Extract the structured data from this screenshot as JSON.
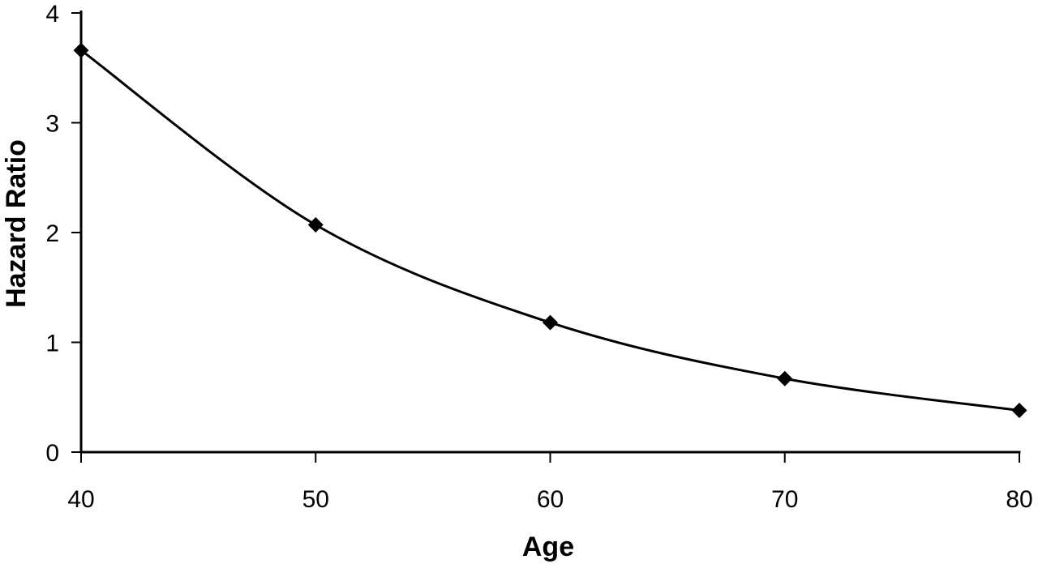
{
  "figure": {
    "background": "#ffffff",
    "ink_color": "#000000"
  },
  "chart_data": {
    "type": "line",
    "title": "",
    "xlabel": "Age",
    "ylabel": "Hazard Ratio",
    "x": [
      40,
      50,
      60,
      70,
      80
    ],
    "series": [
      {
        "name": "Hazard Ratio",
        "values": [
          3.66,
          2.07,
          1.18,
          0.67,
          0.38
        ]
      }
    ],
    "xticks": [
      40,
      50,
      60,
      70,
      80
    ],
    "yticks": [
      0,
      1,
      2,
      3,
      4
    ],
    "xlim": [
      40,
      80
    ],
    "ylim": [
      0,
      4
    ],
    "marker": "diamond",
    "line_style": "smooth",
    "line_color": "#000000",
    "marker_color": "#000000",
    "grid": false,
    "legend": "none"
  }
}
